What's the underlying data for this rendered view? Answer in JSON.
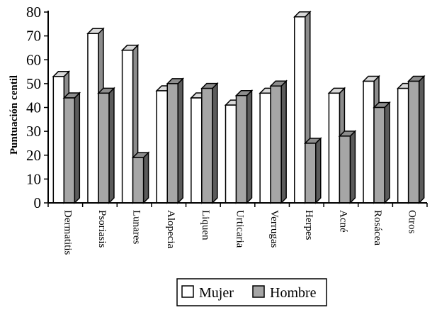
{
  "chart_data": {
    "type": "bar",
    "ylabel": "Puntuación centil",
    "ylim": [
      0,
      80
    ],
    "yticks": [
      "0",
      "10",
      "20",
      "30",
      "40",
      "50",
      "60",
      "70",
      "80"
    ],
    "categories": [
      "Dermatitis",
      "Psoriasis",
      "Lunares",
      "Alopecia",
      "Liquen",
      "Urticaria",
      "Verrugas",
      "Herpes",
      "Acné",
      "Rosácea",
      "Otros"
    ],
    "series": [
      {
        "name": "Mujer",
        "color": "#ffffff",
        "values": [
          53,
          71,
          64,
          47,
          44,
          41,
          46,
          78,
          46,
          51,
          48
        ]
      },
      {
        "name": "Hombre",
        "color": "#a6a6a6",
        "values": [
          44,
          46,
          19,
          50,
          48,
          45,
          49,
          25,
          28,
          40,
          51
        ]
      }
    ],
    "grid": false,
    "legend": "bottom"
  }
}
